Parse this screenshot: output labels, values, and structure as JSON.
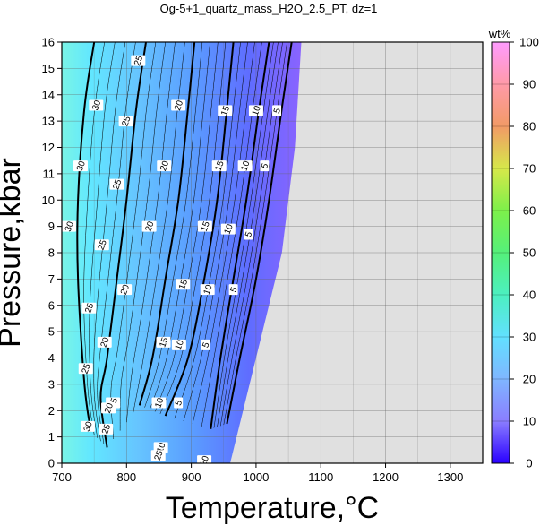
{
  "chart_data": {
    "type": "contour",
    "title": "Og-5+1_quartz_mass_H2O_2.5_PT, dz=1",
    "xlabel": "Temperature,°C",
    "ylabel": "Pressure,kbar",
    "xlim": [
      700,
      1350
    ],
    "ylim": [
      0,
      16
    ],
    "xticks": [
      "700",
      "800",
      "900",
      "1000",
      "1100",
      "1200",
      "1300"
    ],
    "yticks": [
      "0",
      "1",
      "2",
      "3",
      "4",
      "5",
      "6",
      "7",
      "8",
      "9",
      "10",
      "11",
      "12",
      "13",
      "14",
      "15",
      "16"
    ],
    "grid": true,
    "background_no_data": "#e0e0e0",
    "colorbar": {
      "label": "wt%",
      "range": [
        0,
        100
      ],
      "ticks": [
        "0",
        "10",
        "20",
        "30",
        "40",
        "50",
        "60",
        "70",
        "80",
        "90",
        "100"
      ]
    },
    "field_boundary": [
      [
        700,
        0
      ],
      [
        960,
        0
      ],
      [
        1000,
        4
      ],
      [
        1040,
        8
      ],
      [
        1060,
        12
      ],
      [
        1070,
        16
      ],
      [
        700,
        16
      ]
    ],
    "contours": [
      {
        "level": 5,
        "points": [
          [
            955,
            1.5
          ],
          [
            975,
            4
          ],
          [
            1000,
            7
          ],
          [
            1020,
            10
          ],
          [
            1040,
            13.5
          ],
          [
            1055,
            16
          ]
        ]
      },
      {
        "level": 10,
        "points": [
          [
            930,
            1.3
          ],
          [
            945,
            4
          ],
          [
            965,
            7
          ],
          [
            985,
            10
          ],
          [
            1005,
            13.5
          ],
          [
            1020,
            16
          ]
        ]
      },
      {
        "level": 15,
        "points": [
          [
            860,
            1.8
          ],
          [
            895,
            4
          ],
          [
            920,
            7
          ],
          [
            940,
            10
          ],
          [
            955,
            13.5
          ],
          [
            965,
            16
          ]
        ]
      },
      {
        "level": 20,
        "points": [
          [
            820,
            2.2
          ],
          [
            840,
            4
          ],
          [
            860,
            7
          ],
          [
            880,
            10
          ],
          [
            895,
            13.5
          ],
          [
            905,
            16
          ]
        ]
      },
      {
        "level": 25,
        "points": [
          [
            770,
            0.6
          ],
          [
            760,
            2.5
          ],
          [
            770,
            4
          ],
          [
            785,
            7
          ],
          [
            800,
            10
          ],
          [
            815,
            13.5
          ],
          [
            830,
            16
          ]
        ]
      },
      {
        "level": 30,
        "points": [
          [
            745,
            1.2
          ],
          [
            735,
            3
          ],
          [
            725,
            7
          ],
          [
            725,
            10
          ],
          [
            735,
            13.5
          ],
          [
            750,
            16
          ]
        ]
      }
    ],
    "contour_labels": [
      {
        "text": "5",
        "x": 1032,
        "y": 13.4
      },
      {
        "text": "5",
        "x": 1013,
        "y": 11.3
      },
      {
        "text": "5",
        "x": 988,
        "y": 8.7
      },
      {
        "text": "5",
        "x": 965,
        "y": 6.6
      },
      {
        "text": "5",
        "x": 922,
        "y": 4.5
      },
      {
        "text": "5",
        "x": 880,
        "y": 2.3
      },
      {
        "text": "10",
        "x": 1000,
        "y": 13.4
      },
      {
        "text": "10",
        "x": 983,
        "y": 11.3
      },
      {
        "text": "10",
        "x": 957,
        "y": 8.9
      },
      {
        "text": "10",
        "x": 925,
        "y": 6.6
      },
      {
        "text": "10",
        "x": 881,
        "y": 4.5
      },
      {
        "text": "10",
        "x": 850,
        "y": 2.3
      },
      {
        "text": "15",
        "x": 952,
        "y": 13.4
      },
      {
        "text": "15",
        "x": 943,
        "y": 11.3
      },
      {
        "text": "15",
        "x": 921,
        "y": 9.0
      },
      {
        "text": "15",
        "x": 887,
        "y": 6.8
      },
      {
        "text": "15",
        "x": 857,
        "y": 4.6
      },
      {
        "text": "15",
        "x": 779,
        "y": 2.3
      },
      {
        "text": "20",
        "x": 880,
        "y": 13.6
      },
      {
        "text": "20",
        "x": 858,
        "y": 11.3
      },
      {
        "text": "20",
        "x": 835,
        "y": 9.0
      },
      {
        "text": "20",
        "x": 797,
        "y": 6.6
      },
      {
        "text": "20",
        "x": 766,
        "y": 4.6
      },
      {
        "text": "20",
        "x": 772,
        "y": 2.1
      },
      {
        "text": "25",
        "x": 818,
        "y": 15.3
      },
      {
        "text": "25",
        "x": 799,
        "y": 13.0
      },
      {
        "text": "25",
        "x": 785,
        "y": 10.6
      },
      {
        "text": "25",
        "x": 762,
        "y": 8.3
      },
      {
        "text": "25",
        "x": 742,
        "y": 5.9
      },
      {
        "text": "25",
        "x": 737,
        "y": 3.6
      },
      {
        "text": "25",
        "x": 768,
        "y": 1.3
      },
      {
        "text": "30",
        "x": 753,
        "y": 13.6
      },
      {
        "text": "30",
        "x": 729,
        "y": 11.3
      },
      {
        "text": "30",
        "x": 711,
        "y": 9.0
      },
      {
        "text": "30",
        "x": 740,
        "y": 1.4
      },
      {
        "text": "10",
        "x": 853,
        "y": 0.6
      },
      {
        "text": "25",
        "x": 849,
        "y": 0.3
      },
      {
        "text": "20",
        "x": 920,
        "y": 0.1
      }
    ],
    "colorbar_stops": [
      {
        "offset": 0.0,
        "color": "#2a00ff"
      },
      {
        "offset": 0.1,
        "color": "#8a7dff"
      },
      {
        "offset": 0.2,
        "color": "#7fb6ff"
      },
      {
        "offset": 0.3,
        "color": "#62e0ff"
      },
      {
        "offset": 0.4,
        "color": "#4cf0c0"
      },
      {
        "offset": 0.5,
        "color": "#55f07a"
      },
      {
        "offset": 0.6,
        "color": "#7df04a"
      },
      {
        "offset": 0.7,
        "color": "#d6e84a"
      },
      {
        "offset": 0.8,
        "color": "#f29a66"
      },
      {
        "offset": 0.9,
        "color": "#ff9aa8"
      },
      {
        "offset": 1.0,
        "color": "#ff9bff"
      }
    ]
  }
}
